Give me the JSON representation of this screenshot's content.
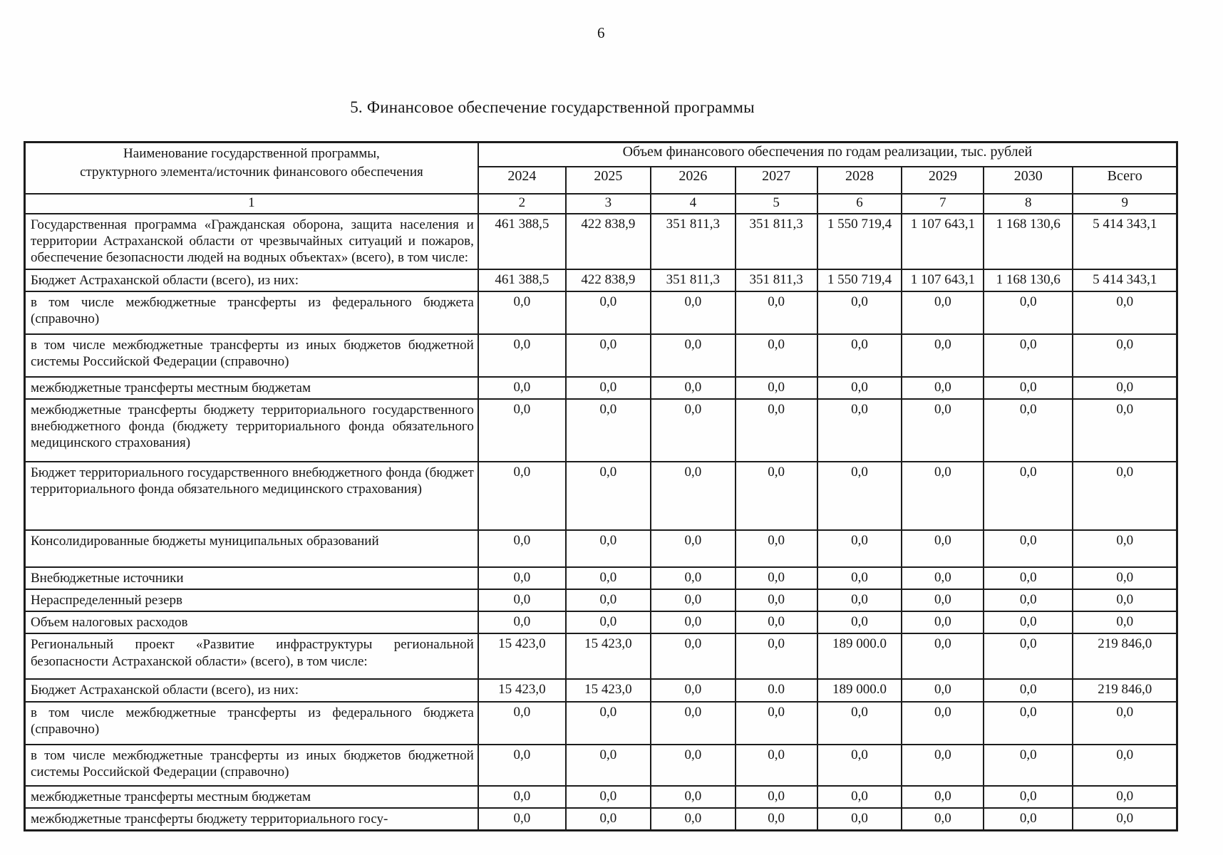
{
  "page": {
    "number": "6",
    "title": "5. Финансовое обеспечение государственной программы"
  },
  "table": {
    "header": {
      "name_col": "Наименование государственной программы,\nструктурного элемента/источник финансового обеспечения",
      "group": "Объем финансового обеспечения по годам реализации, тыс. рублей",
      "years": [
        "2024",
        "2025",
        "2026",
        "2027",
        "2028",
        "2029",
        "2030",
        "Всего"
      ],
      "col_numbers": [
        "1",
        "2",
        "3",
        "4",
        "5",
        "6",
        "7",
        "8",
        "9"
      ]
    },
    "rows": [
      {
        "name": "Государственная программа «Гражданская оборона, защита населения и территории Астраханской области от чрезвычайных ситуаций и пожаров, обеспечение безопасности людей на водных объектах» (всего), в том числе:",
        "values": [
          "461 388,5",
          "422 838,9",
          "351 811,3",
          "351 811,3",
          "1 550 719,4",
          "1 107 643,1",
          "1 168 130,6",
          "5 414 343,1"
        ]
      },
      {
        "name": "Бюджет Астраханской области (всего), из них:",
        "values": [
          "461 388,5",
          "422 838,9",
          "351 811,3",
          "351 811,3",
          "1 550 719,4",
          "1 107 643,1",
          "1 168 130,6",
          "5 414 343,1"
        ]
      },
      {
        "name": "в том числе межбюджетные трансферты из федерального бюджета (справочно)",
        "values": [
          "0,0",
          "0,0",
          "0,0",
          "0,0",
          "0,0",
          "0,0",
          "0,0",
          "0,0"
        ]
      },
      {
        "name": "в том числе межбюджетные трансферты из иных бюджетов бюджетной системы Российской Федерации (справочно)",
        "values": [
          "0,0",
          "0,0",
          "0,0",
          "0,0",
          "0,0",
          "0,0",
          "0,0",
          "0,0"
        ]
      },
      {
        "name": "межбюджетные трансферты местным бюджетам",
        "values": [
          "0,0",
          "0,0",
          "0,0",
          "0,0",
          "0,0",
          "0,0",
          "0,0",
          "0,0"
        ]
      },
      {
        "name": "межбюджетные трансферты бюджету территориального государственного внебюджетного фонда (бюджету территориального фонда обязательного медицинского страхования)",
        "values": [
          "0,0",
          "0,0",
          "0,0",
          "0,0",
          "0,0",
          "0,0",
          "0,0",
          "0,0"
        ]
      },
      {
        "name": "Бюджет территориального государственного внебюджетного фонда (бюджет территориального фонда обязательного медицинского страхования)",
        "values": [
          "0,0",
          "0,0",
          "0,0",
          "0,0",
          "0,0",
          "0,0",
          "0,0",
          "0,0"
        ]
      },
      {
        "name": "Консолидированные бюджеты муниципальных образований",
        "values": [
          "0,0",
          "0,0",
          "0,0",
          "0,0",
          "0,0",
          "0,0",
          "0,0",
          "0,0"
        ]
      },
      {
        "name": "Внебюджетные источники",
        "values": [
          "0,0",
          "0,0",
          "0,0",
          "0,0",
          "0,0",
          "0,0",
          "0,0",
          "0,0"
        ]
      },
      {
        "name": "Нераспределенный резерв",
        "values": [
          "0,0",
          "0,0",
          "0,0",
          "0,0",
          "0,0",
          "0,0",
          "0,0",
          "0,0"
        ]
      },
      {
        "name": "Объем налоговых расходов",
        "values": [
          "0,0",
          "0,0",
          "0,0",
          "0,0",
          "0,0",
          "0,0",
          "0,0",
          "0,0"
        ]
      },
      {
        "name": "Региональный проект «Развитие инфраструктуры региональной безопасности Астраханской области» (всего), в том числе:",
        "values": [
          "15 423,0",
          "15 423,0",
          "0,0",
          "0,0",
          "189 000.0",
          "0,0",
          "0,0",
          "219 846,0"
        ]
      },
      {
        "name": "Бюджет Астраханской области (всего), из них:",
        "values": [
          "15 423,0",
          "15 423,0",
          "0,0",
          "0.0",
          "189 000.0",
          "0,0",
          "0,0",
          "219 846,0"
        ]
      },
      {
        "name": "в том числе межбюджетные трансферты из федерального бюджета (справочно)",
        "values": [
          "0,0",
          "0,0",
          "0,0",
          "0,0",
          "0,0",
          "0,0",
          "0,0",
          "0,0"
        ]
      },
      {
        "name": "в том числе межбюджетные трансферты из иных бюджетов бюджетной системы Российской Федерации (справочно)",
        "values": [
          "0,0",
          "0,0",
          "0,0",
          "0,0",
          "0,0",
          "0,0",
          "0,0",
          "0,0"
        ]
      },
      {
        "name": "межбюджетные трансферты местным бюджетам",
        "values": [
          "0,0",
          "0,0",
          "0,0",
          "0,0",
          "0,0",
          "0,0",
          "0,0",
          "0,0"
        ]
      },
      {
        "name": "межбюджетные трансферты бюджету территориального госу-",
        "values": [
          "0,0",
          "0,0",
          "0,0",
          "0,0",
          "0,0",
          "0,0",
          "0,0",
          "0,0"
        ]
      }
    ]
  }
}
